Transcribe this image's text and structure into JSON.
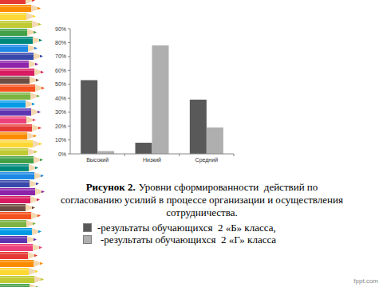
{
  "chart_data": {
    "type": "bar",
    "title": "Рисунок 2.",
    "subtitle": "Уровни сформированности  действий по согласованию усилий в процессе организации и осуществления сотрудничества.",
    "categories": [
      "Высокий",
      "Низкий",
      "Средний"
    ],
    "series": [
      {
        "name": "-результаты обучающихся  2 «Б» класса,",
        "color": "#595959",
        "values": [
          53,
          8,
          39
        ]
      },
      {
        "name": "-результаты обучающихся  2 «Г» класса",
        "color": "#afafaf",
        "values": [
          2,
          78,
          19
        ]
      }
    ],
    "ylim": [
      0,
      90
    ],
    "yticks": [
      {
        "value": 0,
        "label": "0%"
      },
      {
        "value": 10,
        "label": "10%"
      },
      {
        "value": 20,
        "label": "20%"
      },
      {
        "value": 30,
        "label": "30%"
      },
      {
        "value": 40,
        "label": "40%"
      },
      {
        "value": 50,
        "label": "50%"
      },
      {
        "value": 60,
        "label": "60%"
      },
      {
        "value": 70,
        "label": "70%"
      },
      {
        "value": 80,
        "label": "80%"
      },
      {
        "value": 90,
        "label": "90%"
      }
    ],
    "grid": false,
    "legend": "bottom",
    "annotations": [
      "fppt.com"
    ]
  }
}
